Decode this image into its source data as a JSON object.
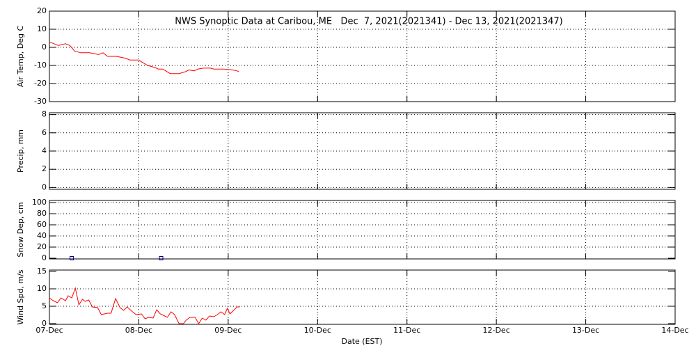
{
  "chart_data": [
    {
      "type": "line",
      "title": "NWS Synoptic Data at Caribou, ME   Dec  7, 2021(2021341) - Dec 13, 2021(2021347)",
      "ylabel": "Air Temp, Deg C",
      "color": "#ff0000",
      "grid": true,
      "xlim": [
        0,
        7
      ],
      "ylim": [
        -30,
        20
      ],
      "yticks": [
        -30,
        -20,
        -10,
        0,
        10,
        20
      ],
      "x": [
        0,
        0.05,
        0.1,
        0.18,
        0.23,
        0.28,
        0.35,
        0.45,
        0.55,
        0.6,
        0.65,
        0.75,
        0.85,
        0.9,
        1.0,
        1.03,
        1.1,
        1.17,
        1.22,
        1.27,
        1.3,
        1.35,
        1.45,
        1.52,
        1.56,
        1.62,
        1.66,
        1.72,
        1.8,
        1.84,
        1.95,
        2.05,
        2.1,
        2.12
      ],
      "values": [
        3,
        2,
        1,
        2,
        1,
        -2,
        -3,
        -3,
        -4,
        -3,
        -5,
        -5,
        -6,
        -7,
        -7,
        -8,
        -10,
        -11,
        -12,
        -12,
        -13,
        -14.5,
        -14.5,
        -13.5,
        -12.5,
        -13,
        -12,
        -11.5,
        -11.5,
        -12,
        -12,
        -12.5,
        -13,
        -13.5
      ]
    },
    {
      "type": "line",
      "ylabel": "Precip, mm",
      "color": "#ff0000",
      "grid": true,
      "xlim": [
        0,
        7
      ],
      "ylim": [
        -0.2,
        8.2
      ],
      "yticks": [
        0,
        2,
        4,
        6,
        8
      ]
    },
    {
      "type": "scatter",
      "ylabel": "Snow Dep, cm",
      "color": "#000080",
      "grid": true,
      "xlim": [
        0,
        7
      ],
      "ylim": [
        -1.25,
        103.75
      ],
      "yticks": [
        0,
        20,
        40,
        60,
        80,
        100
      ],
      "x": [
        0.25,
        1.25
      ],
      "values": [
        0,
        0
      ]
    },
    {
      "type": "line",
      "ylabel": "Wind Spd, m/s",
      "xlabel": "Date (EST)",
      "color": "#ff0000",
      "grid": true,
      "xlim": [
        0,
        7
      ],
      "ylim": [
        -0.2,
        15.4
      ],
      "yticks": [
        0,
        5,
        10,
        15
      ],
      "xticks": [
        {
          "value": 0,
          "label": "07-Dec"
        },
        {
          "value": 1,
          "label": "08-Dec"
        },
        {
          "value": 2,
          "label": "09-Dec"
        },
        {
          "value": 3,
          "label": "10-Dec"
        },
        {
          "value": 4,
          "label": "11-Dec"
        },
        {
          "value": 5,
          "label": "12-Dec"
        },
        {
          "value": 6,
          "label": "13-Dec"
        },
        {
          "value": 7,
          "label": "14-Dec"
        }
      ],
      "x": [
        0,
        0.03,
        0.09,
        0.13,
        0.18,
        0.21,
        0.25,
        0.29,
        0.33,
        0.37,
        0.4,
        0.44,
        0.48,
        0.54,
        0.58,
        0.65,
        0.69,
        0.74,
        0.79,
        0.83,
        0.87,
        0.93,
        0.97,
        1.03,
        1.07,
        1.11,
        1.16,
        1.2,
        1.24,
        1.29,
        1.32,
        1.36,
        1.4,
        1.45,
        1.5,
        1.53,
        1.57,
        1.63,
        1.67,
        1.71,
        1.75,
        1.79,
        1.84,
        1.88,
        1.92,
        1.96,
        1.99,
        2.02,
        2.06,
        2.1,
        2.13
      ],
      "values": [
        7.4,
        6.8,
        6,
        7.4,
        6.6,
        8,
        7.4,
        10.2,
        5.4,
        7,
        6.4,
        6.8,
        4.8,
        4.6,
        2.6,
        3,
        3,
        7.2,
        4.6,
        3.8,
        4.8,
        3.4,
        2.6,
        2.8,
        1.4,
        1.8,
        1.6,
        4,
        2.8,
        2.2,
        1.8,
        3.4,
        2.6,
        0,
        0,
        1,
        1.8,
        1.8,
        0,
        1.6,
        1,
        2.2,
        2,
        2.6,
        3.4,
        2.6,
        4.4,
        2.8,
        3.8,
        4.8,
        4.8
      ]
    }
  ]
}
